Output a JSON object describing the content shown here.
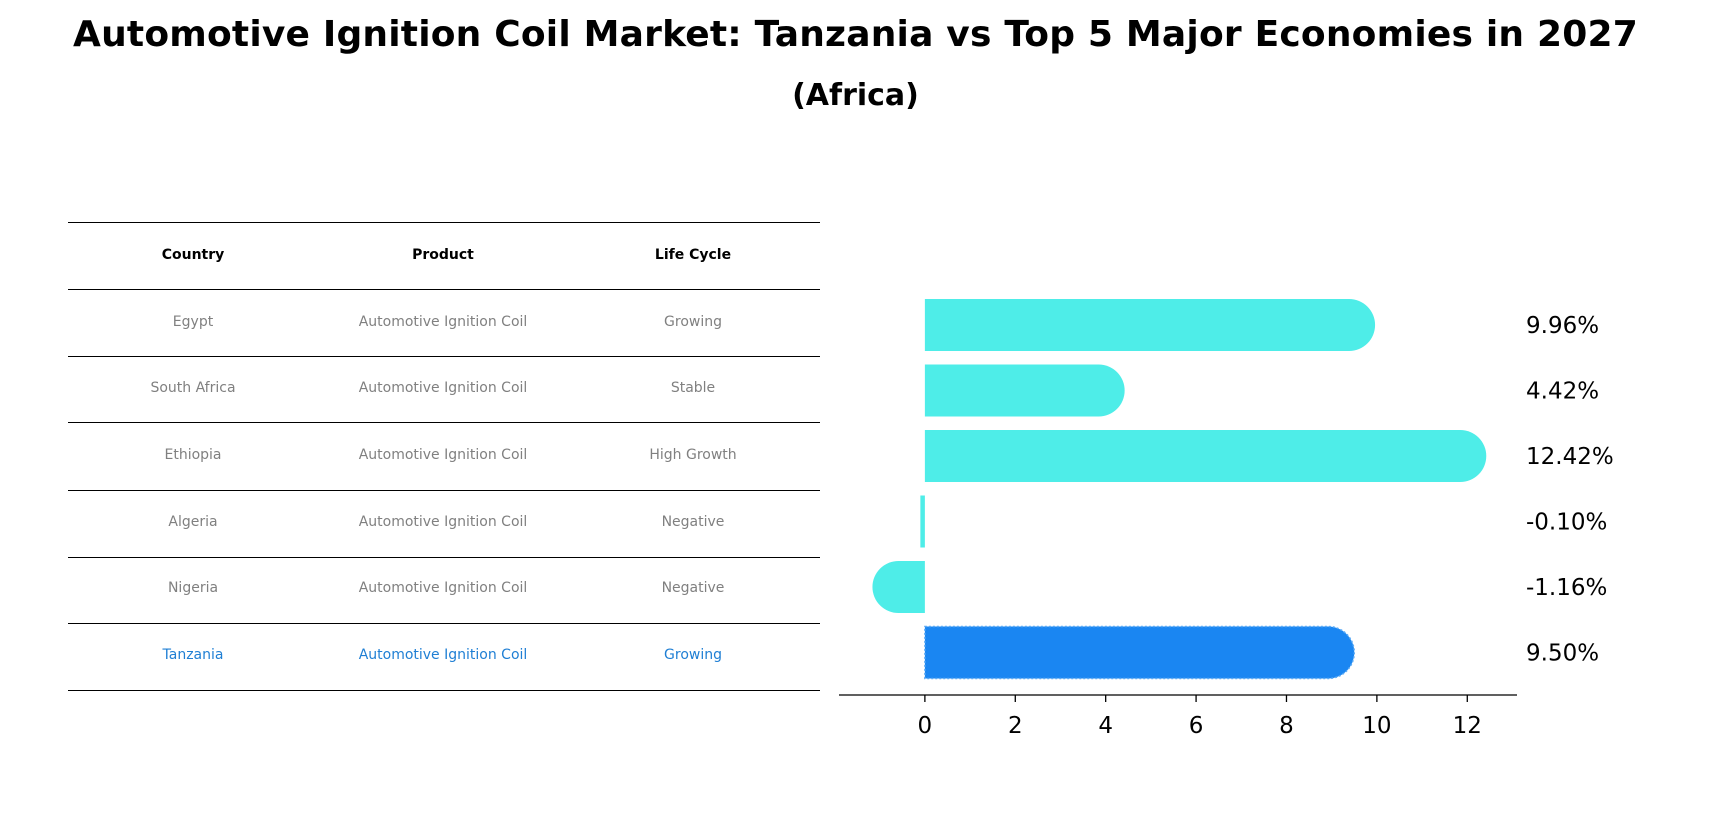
{
  "title": "Automotive Ignition Coil Market: Tanzania vs Top 5 Major Economies in 2027",
  "subtitle": "(Africa)",
  "table": {
    "headers": [
      "Country",
      "Product",
      "Life Cycle"
    ],
    "rows": [
      {
        "country": "Egypt",
        "product": "Automotive Ignition Coil",
        "life_cycle": "Growing"
      },
      {
        "country": "South Africa",
        "product": "Automotive Ignition Coil",
        "life_cycle": "Stable"
      },
      {
        "country": "Ethiopia",
        "product": "Automotive Ignition Coil",
        "life_cycle": "High Growth"
      },
      {
        "country": "Algeria",
        "product": "Automotive Ignition Coil",
        "life_cycle": "Negative"
      },
      {
        "country": "Nigeria",
        "product": "Automotive Ignition Coil",
        "life_cycle": "Negative"
      },
      {
        "country": "Tanzania",
        "product": "Automotive Ignition Coil",
        "life_cycle": "Growing"
      }
    ],
    "highlight_row": "Tanzania",
    "highlight_color": "#1f7fd4"
  },
  "chart_data": {
    "type": "bar",
    "orientation": "horizontal",
    "categories": [
      "Egypt",
      "South Africa",
      "Ethiopia",
      "Algeria",
      "Nigeria",
      "Tanzania"
    ],
    "values": [
      9.96,
      4.42,
      12.42,
      -0.1,
      -1.16,
      9.5
    ],
    "data_labels": [
      "9.96%",
      "4.42%",
      "12.42%",
      "-0.10%",
      "-1.16%",
      "9.50%"
    ],
    "xticks": [
      0,
      2,
      4,
      6,
      8,
      10,
      12
    ],
    "xlim": [
      -1.9,
      13.1
    ],
    "bar_color": "#4eede8",
    "highlight_color": "#1a86f2",
    "highlight_index": 5,
    "grid": false
  }
}
